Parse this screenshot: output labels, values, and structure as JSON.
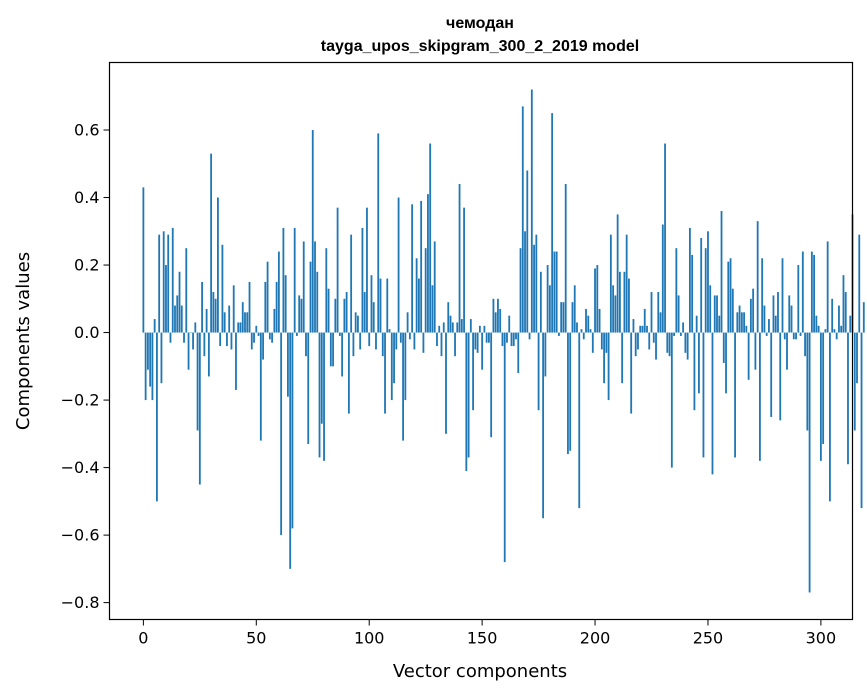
{
  "chart_data": {
    "type": "bar",
    "title": "чемодан",
    "subtitle": "tayga_upos_skipgram_300_2_2019 model",
    "xlabel": "Vector components",
    "ylabel": "Components values",
    "xlim": [
      -15,
      314
    ],
    "ylim": [
      -0.85,
      0.8
    ],
    "x_ticks": [
      0,
      50,
      100,
      150,
      200,
      250,
      300
    ],
    "y_ticks": [
      -0.8,
      -0.6,
      -0.4,
      -0.2,
      0.0,
      0.2,
      0.4,
      0.6
    ],
    "x_tick_labels": [
      "0",
      "50",
      "100",
      "150",
      "200",
      "250",
      "300"
    ],
    "y_tick_labels": [
      "−0.8",
      "−0.6",
      "−0.4",
      "−0.2",
      "0.0",
      "0.2",
      "0.4",
      "0.6"
    ],
    "grid": false,
    "bar_color": "#1f77b4",
    "values": [
      0.43,
      -0.2,
      -0.11,
      -0.16,
      -0.2,
      0.04,
      -0.5,
      0.29,
      -0.15,
      0.3,
      0.2,
      0.29,
      -0.03,
      0.31,
      0.08,
      0.11,
      0.18,
      0.08,
      -0.03,
      0.25,
      -0.11,
      0.0,
      -0.05,
      0.03,
      -0.29,
      -0.45,
      0.15,
      -0.07,
      0.07,
      -0.13,
      0.53,
      0.12,
      0.1,
      0.4,
      -0.04,
      0.26,
      0.06,
      -0.04,
      0.08,
      -0.05,
      0.14,
      -0.17,
      0.03,
      0.03,
      0.09,
      0.06,
      0.06,
      0.15,
      -0.05,
      -0.03,
      0.02,
      -0.01,
      -0.32,
      -0.08,
      0.15,
      0.21,
      -0.02,
      -0.03,
      0.07,
      0.15,
      0.24,
      -0.6,
      0.31,
      0.17,
      -0.19,
      -0.7,
      -0.58,
      0.31,
      -0.01,
      0.11,
      0.1,
      0.27,
      -0.07,
      -0.33,
      0.21,
      0.6,
      0.27,
      0.18,
      -0.37,
      -0.27,
      -0.38,
      0.25,
      0.13,
      -0.1,
      -0.1,
      0.1,
      0.37,
      -0.01,
      -0.13,
      0.1,
      0.12,
      -0.24,
      0.29,
      -0.07,
      0.06,
      0.05,
      -0.05,
      0.31,
      0.12,
      0.37,
      -0.04,
      0.17,
      0.09,
      -0.05,
      0.59,
      0.16,
      -0.07,
      -0.24,
      0.16,
      0.01,
      -0.2,
      -0.15,
      -0.05,
      0.4,
      -0.03,
      -0.32,
      -0.2,
      0.06,
      -0.02,
      0.38,
      -0.05,
      0.22,
      0.16,
      0.39,
      -0.06,
      0.25,
      0.41,
      0.56,
      0.14,
      0.27,
      -0.04,
      0.02,
      -0.07,
      0.03,
      -0.3,
      0.09,
      0.05,
      0.03,
      -0.07,
      0.03,
      0.44,
      0.04,
      0.37,
      -0.41,
      -0.37,
      0.04,
      -0.23,
      -0.05,
      -0.06,
      0.02,
      -0.11,
      0.02,
      -0.03,
      -0.03,
      -0.31,
      0.1,
      0.06,
      0.1,
      0.07,
      -0.04,
      -0.68,
      -0.03,
      0.05,
      -0.04,
      -0.04,
      -0.02,
      -0.12,
      0.25,
      0.67,
      0.3,
      0.48,
      -0.02,
      0.72,
      0.26,
      0.29,
      -0.23,
      0.18,
      -0.55,
      -0.13,
      0.2,
      0.14,
      0.65,
      0.24,
      0.24,
      -0.01,
      0.09,
      0.09,
      0.44,
      -0.36,
      -0.35,
      0.09,
      0.14,
      0.03,
      -0.52,
      0.01,
      -0.02,
      0.07,
      0.05,
      0.01,
      -0.06,
      0.19,
      0.2,
      0.07,
      -0.05,
      -0.15,
      -0.06,
      -0.2,
      0.29,
      0.14,
      0.11,
      0.35,
      0.18,
      -0.15,
      0.18,
      0.29,
      0.16,
      -0.24,
      0.04,
      -0.07,
      -0.05,
      0.02,
      0.02,
      0.07,
      0.02,
      -0.05,
      0.12,
      -0.03,
      -0.08,
      0.12,
      0.06,
      0.32,
      0.56,
      -0.06,
      -0.07,
      -0.4,
      -0.01,
      0.25,
      0.11,
      -0.01,
      0.03,
      -0.06,
      -0.08,
      0.31,
      0.23,
      -0.23,
      0.05,
      -0.18,
      0.28,
      -0.37,
      0.25,
      0.3,
      0.14,
      -0.42,
      0.11,
      0.11,
      0.05,
      0.36,
      -0.09,
      -0.18,
      0.21,
      0.22,
      0.13,
      -0.37,
      0.06,
      0.08,
      0.06,
      0.06,
      0.02,
      -0.14,
      0.1,
      0.13,
      -0.11,
      0.33,
      -0.38,
      0.22,
      0.08,
      -0.01,
      0.04,
      -0.25,
      0.11,
      0.05,
      0.12,
      -0.26,
      0.22,
      -0.02,
      -0.11,
      0.11,
      0.08,
      -0.02,
      -0.02,
      0.2,
      -0.01,
      0.24,
      -0.07,
      -0.29,
      -0.77,
      0.24,
      0.23,
      0.05,
      0.02,
      -0.38,
      -0.33,
      0.01,
      0.27,
      -0.5,
      0.1,
      0.01,
      -0.02,
      0.08,
      0.02,
      0.17,
      0.12,
      -0.39,
      0.05,
      0.35,
      -0.29,
      -0.15,
      0.29,
      -0.52,
      0.09
    ]
  }
}
